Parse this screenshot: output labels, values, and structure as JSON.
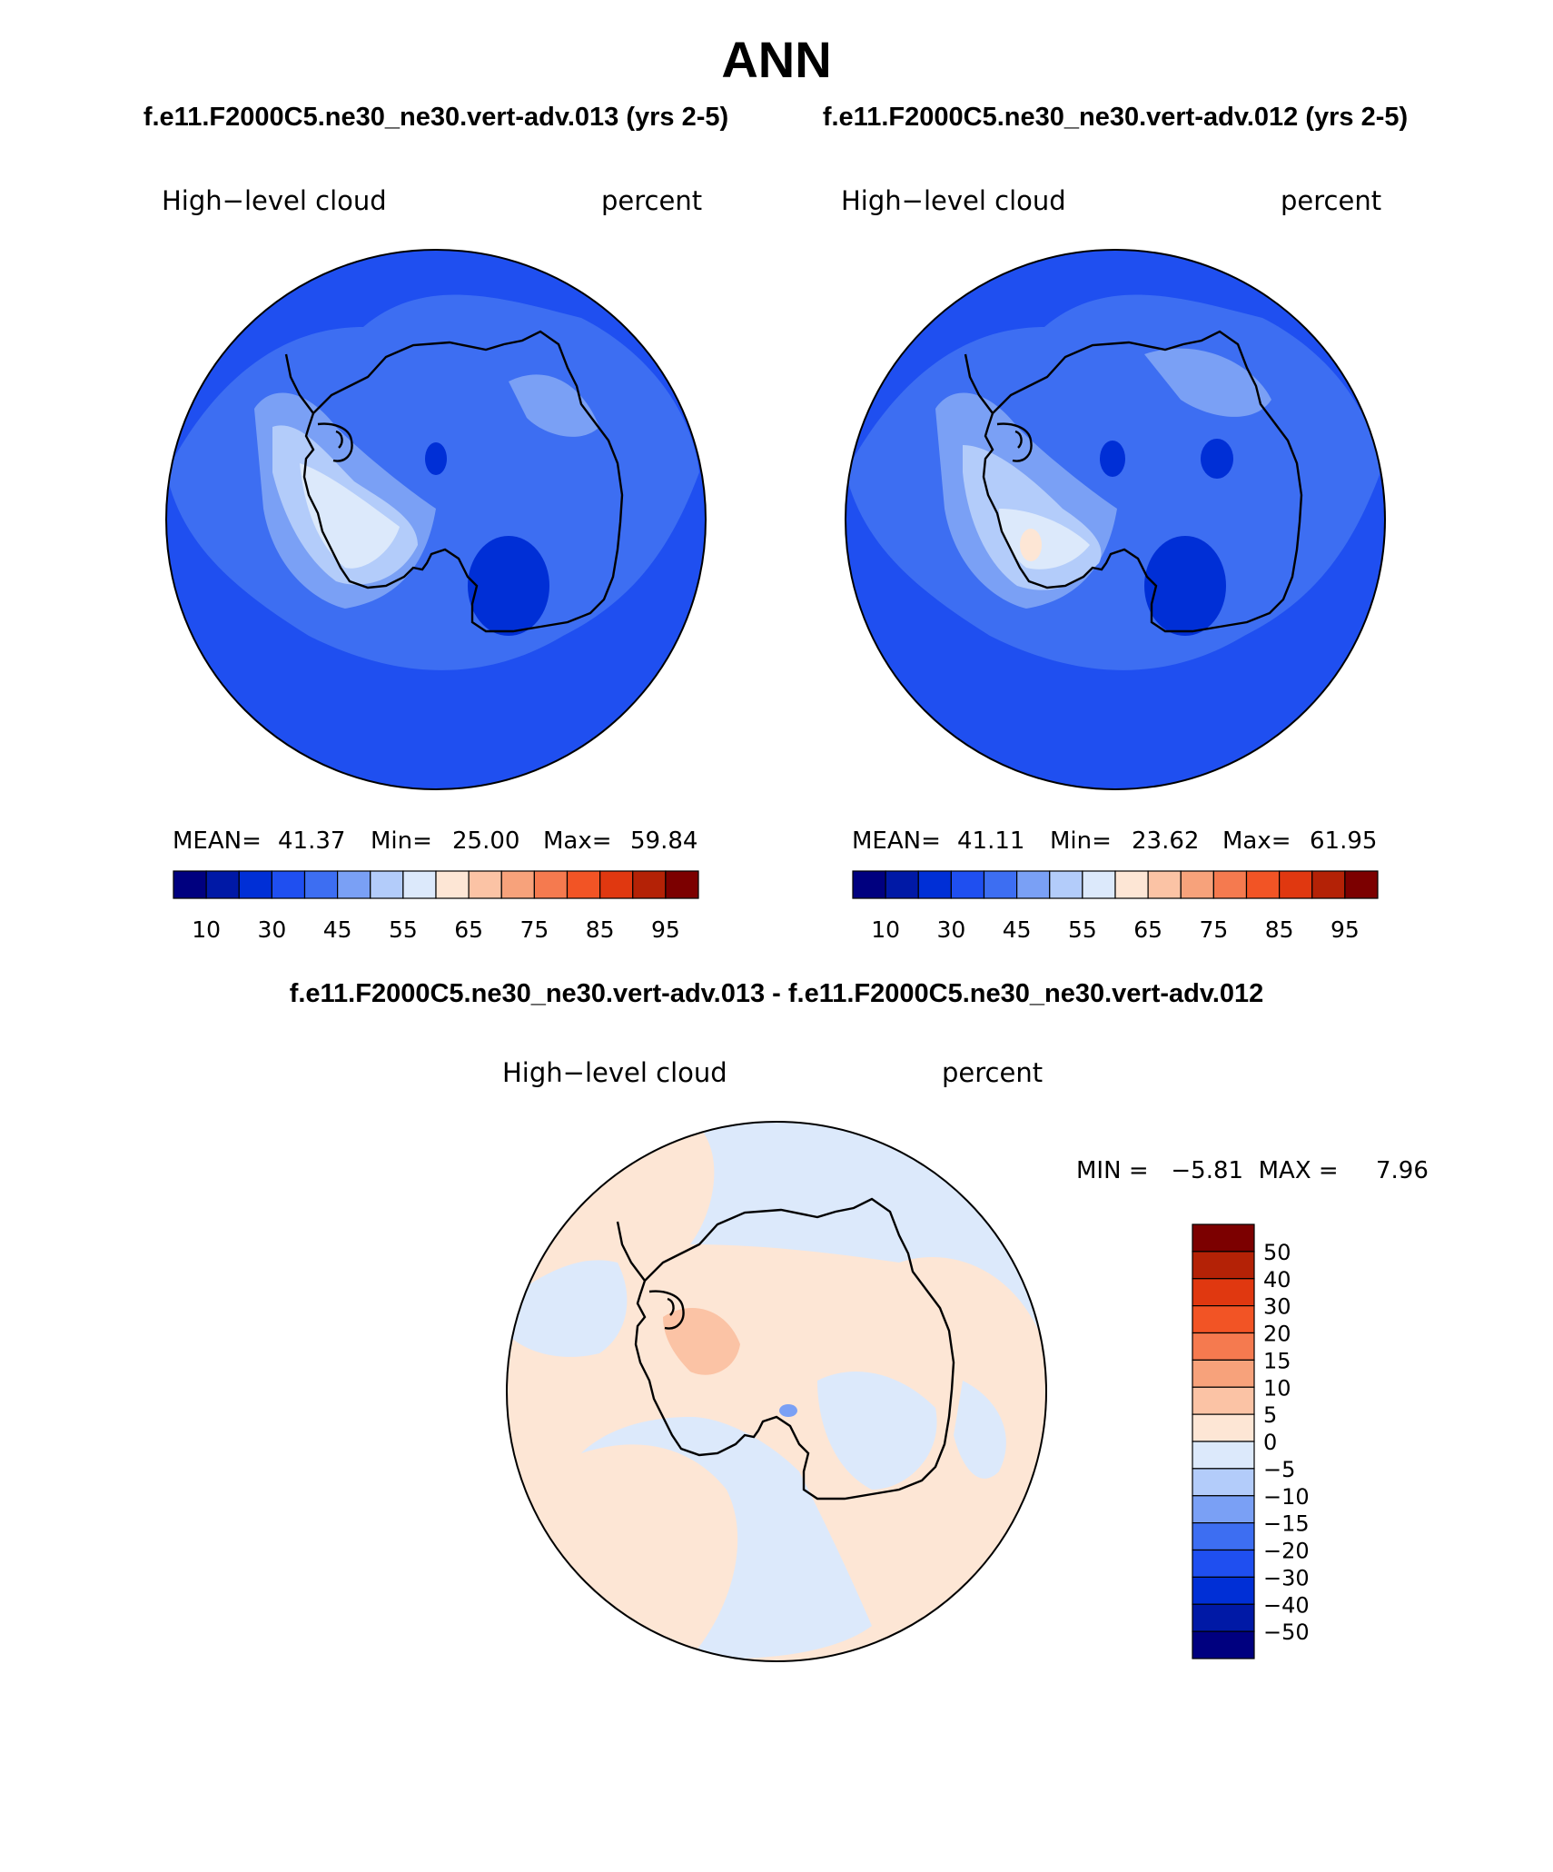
{
  "title": "ANN",
  "panels": [
    {
      "case": "f.e11.F2000C5.ne30_ne30.vert-adv.013 (yrs 2-5)",
      "variable": "High−level cloud",
      "units": "percent",
      "stats": {
        "mean_label": "MEAN=",
        "mean": "41.37",
        "min_label": "Min=",
        "min": "25.00",
        "max_label": "Max=",
        "max": "59.84"
      }
    },
    {
      "case": "f.e11.F2000C5.ne30_ne30.vert-adv.012 (yrs 2-5)",
      "variable": "High−level cloud",
      "units": "percent",
      "stats": {
        "mean_label": "MEAN=",
        "mean": "41.11",
        "min_label": "Min=",
        "min": "23.62",
        "max_label": "Max=",
        "max": "61.95"
      }
    }
  ],
  "abs_colorbar": {
    "colors": [
      "#00007f",
      "#0019a6",
      "#002fd6",
      "#1f4ff0",
      "#3d6ef2",
      "#7aa0f5",
      "#b3ccfa",
      "#dce9fb",
      "#fde6d5",
      "#fbc3a5",
      "#f7a27b",
      "#f57a4f",
      "#f25425",
      "#e03810",
      "#b42206",
      "#7c0000"
    ],
    "labels": [
      "10",
      "30",
      "45",
      "55",
      "65",
      "75",
      "85",
      "95"
    ]
  },
  "diff": {
    "title": "f.e11.F2000C5.ne30_ne30.vert-adv.013 - f.e11.F2000C5.ne30_ne30.vert-adv.012",
    "variable": "High−level cloud",
    "units": "percent",
    "minmax": "MIN =   −5.81  MAX =     7.96",
    "colorbar": {
      "colors": [
        "#7c0000",
        "#b42206",
        "#e03810",
        "#f25425",
        "#f57a4f",
        "#f7a27b",
        "#fbc3a5",
        "#fde6d5",
        "#dce9fb",
        "#b3ccfa",
        "#7aa0f5",
        "#3d6ef2",
        "#1f4ff0",
        "#002fd6",
        "#0019a6",
        "#00007f"
      ],
      "labels": [
        "50",
        "40",
        "30",
        "20",
        "15",
        "10",
        "5",
        "0",
        "−5",
        "−10",
        "−15",
        "−20",
        "−30",
        "−40",
        "−50"
      ]
    }
  },
  "palette": {
    "deep_blue": "#1f4ff0",
    "mid_blue": "#3d6ef2",
    "light_blue": "#7aa0f5",
    "pale_blue": "#b3ccfa",
    "very_pale_blue": "#dce9fb",
    "pale_orange": "#fde6d5",
    "salmon": "#fbc3a5",
    "dark_blue": "#002fd6"
  }
}
